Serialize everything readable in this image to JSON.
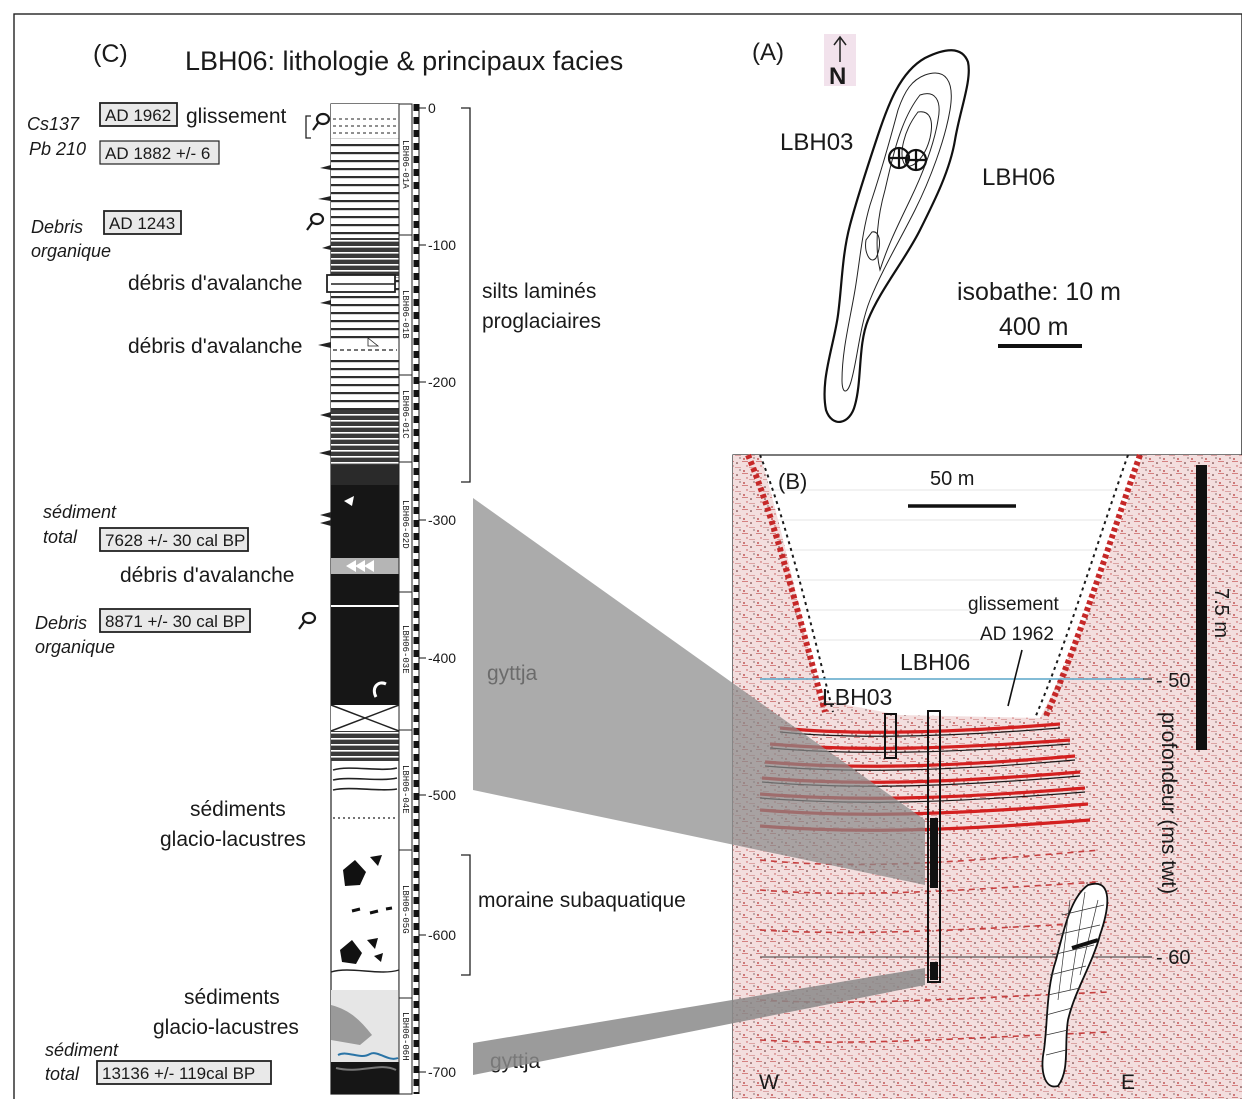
{
  "panel_c": {
    "label": "(C)",
    "title": "LBH06: lithologie  &  principaux facies",
    "dating_methods": [
      "Cs137",
      "Pb 210"
    ],
    "dates": [
      {
        "label": "AD 1962",
        "event": "glissement"
      },
      {
        "label": "AD 1882 +/- 6"
      },
      {
        "label": "AD 1243",
        "material": [
          "Debris",
          "organique"
        ]
      },
      {
        "label": "7628 +/- 30 cal BP",
        "material": [
          "sédiment",
          "total"
        ]
      },
      {
        "label": "8871 +/- 30 cal BP",
        "material": [
          "Debris",
          "organique"
        ]
      },
      {
        "label": "13136 +/- 119cal BP",
        "material": [
          "sédiment",
          "total"
        ]
      }
    ],
    "facies_left": [
      "débris d'avalanche",
      "débris d'avalanche",
      "débris d'avalanche",
      "sédiments",
      "glacio-lacustres",
      "sédiments",
      "glacio-lacustres"
    ],
    "facies_right": [
      "silts laminés",
      "proglaciaires",
      "gyttja",
      "moraine subaquatique",
      "gyttja"
    ],
    "depth_ticks": [
      "0",
      "-100",
      "-200",
      "-300",
      "-400",
      "-500",
      "-600",
      "-700"
    ],
    "section_ids": [
      "LBH06-01A",
      "LBH06-01B",
      "LBH06-01C",
      "LBH06-02D",
      "LBH06-03E",
      "LBH06-04E",
      "LBH06-05G",
      "LBH06-06H"
    ]
  },
  "panel_a": {
    "label": "(A)",
    "north": "N",
    "sites": [
      "LBH03",
      "LBH06"
    ],
    "isobath": "isobathe: 10 m",
    "scale": "400 m"
  },
  "panel_b": {
    "label": "(B)",
    "scale_h": "50 m",
    "scale_v": "7.5 m",
    "event": [
      "glissement",
      "AD 1962"
    ],
    "cores": [
      "LBH06",
      "LBH03"
    ],
    "depth_labels": [
      "- 50",
      "- 60"
    ],
    "axis_label": "profondeur (ms twt)",
    "west": "W",
    "east": "E"
  },
  "colors": {
    "reflector_red": "#d42020",
    "gyttja_black": "#161616",
    "connector_grey": "#8a8a8a",
    "water_line": "#5aa6c8",
    "clast_grey": "#b5b5b5",
    "label_box_fill": "#e9e9e9"
  }
}
